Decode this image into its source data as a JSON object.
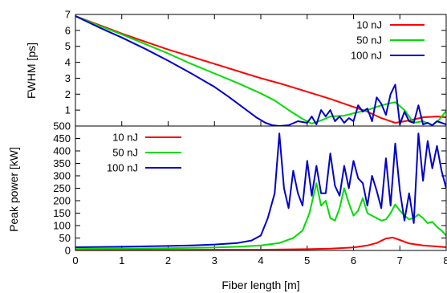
{
  "chart_data": [
    {
      "type": "line",
      "ylabel": "FWHM [ps]",
      "xlim": [
        0,
        8
      ],
      "ylim": [
        0,
        7
      ],
      "y_ticks": [
        "1",
        "2",
        "3",
        "4",
        "5",
        "6",
        "7"
      ],
      "legend_position": "top-right",
      "series": [
        {
          "name": "10 nJ",
          "color": "#ff0000",
          "x": [
            0,
            0.5,
            1,
            1.5,
            2,
            2.5,
            3,
            3.5,
            4,
            4.5,
            5,
            5.5,
            6,
            6.3,
            6.6,
            6.9,
            7.2,
            7.5,
            7.8,
            8
          ],
          "y": [
            6.9,
            6.35,
            5.8,
            5.3,
            4.8,
            4.35,
            3.9,
            3.45,
            3.0,
            2.6,
            2.15,
            1.7,
            1.2,
            0.9,
            0.5,
            0.2,
            0.35,
            0.55,
            0.6,
            0.55
          ]
        },
        {
          "name": "50 nJ",
          "color": "#00dd00",
          "x": [
            0,
            0.5,
            1,
            1.5,
            2,
            2.5,
            3,
            3.5,
            4,
            4.3,
            4.6,
            4.9,
            5.1,
            5.3,
            5.5,
            5.8,
            6.0,
            6.3,
            6.6,
            6.9,
            7.1,
            7.3,
            7.5,
            7.7,
            7.85,
            8
          ],
          "y": [
            6.9,
            6.3,
            5.75,
            5.15,
            4.55,
            3.9,
            3.3,
            2.7,
            2.05,
            1.6,
            1.0,
            0.45,
            0.15,
            0.35,
            0.6,
            0.65,
            0.8,
            1.0,
            1.3,
            1.5,
            1.0,
            0.2,
            0.3,
            0.05,
            0.4,
            0.95
          ]
        },
        {
          "name": "100 nJ",
          "color": "#0000cc",
          "x": [
            0,
            0.5,
            1,
            1.5,
            2,
            2.5,
            3,
            3.3,
            3.6,
            3.9,
            4.1,
            4.25,
            4.4,
            4.6,
            4.8,
            5.0,
            5.1,
            5.2,
            5.3,
            5.4,
            5.5,
            5.6,
            5.7,
            5.8,
            5.9,
            6.0,
            6.1,
            6.2,
            6.3,
            6.4,
            6.5,
            6.6,
            6.7,
            6.8,
            6.9,
            7.0,
            7.1,
            7.2,
            7.3,
            7.4,
            7.5,
            7.6,
            7.7,
            7.8,
            7.9,
            8.0
          ],
          "y": [
            6.9,
            6.2,
            5.55,
            4.85,
            4.1,
            3.3,
            2.45,
            1.85,
            1.2,
            0.55,
            0.2,
            0.05,
            0.0,
            0.05,
            0.3,
            0.2,
            0.6,
            0.1,
            1.0,
            0.6,
            1.0,
            0.3,
            0.6,
            0.2,
            0.5,
            0.3,
            1.3,
            0.9,
            1.1,
            0.3,
            1.8,
            1.4,
            0.7,
            2.0,
            2.6,
            0.1,
            0.9,
            0.3,
            0.2,
            1.3,
            0.1,
            0.2,
            0.05,
            0.3,
            0.2,
            0.1
          ]
        }
      ]
    },
    {
      "type": "line",
      "xlabel": "Fiber length [m]",
      "ylabel": "Peak power [kW]",
      "xlim": [
        0,
        8
      ],
      "ylim": [
        0,
        500
      ],
      "x_ticks": [
        "0",
        "1",
        "2",
        "3",
        "4",
        "5",
        "6",
        "7",
        "8"
      ],
      "y_ticks": [
        "0",
        "50",
        "100",
        "150",
        "200",
        "250",
        "300",
        "350",
        "400",
        "450",
        "500"
      ],
      "legend_position": "top-left",
      "series": [
        {
          "name": "10 nJ",
          "color": "#ff0000",
          "x": [
            0,
            1,
            2,
            3,
            4,
            5,
            5.5,
            6,
            6.3,
            6.5,
            6.7,
            6.85,
            7.0,
            7.2,
            7.5,
            7.8,
            8
          ],
          "y": [
            2,
            2,
            2,
            3,
            3,
            5,
            7,
            12,
            20,
            30,
            48,
            52,
            42,
            28,
            20,
            16,
            13
          ]
        },
        {
          "name": "50 nJ",
          "color": "#00dd00",
          "x": [
            0,
            1,
            2,
            3,
            3.5,
            4,
            4.4,
            4.7,
            4.9,
            5.05,
            5.2,
            5.3,
            5.4,
            5.5,
            5.6,
            5.7,
            5.8,
            5.9,
            6.0,
            6.1,
            6.2,
            6.3,
            6.4,
            6.5,
            6.6,
            6.7,
            6.8,
            6.9,
            7.0,
            7.1,
            7.2,
            7.3,
            7.4,
            7.5,
            7.6,
            7.7,
            7.8,
            7.9,
            8.0
          ],
          "y": [
            6,
            7,
            9,
            12,
            15,
            20,
            30,
            50,
            80,
            150,
            270,
            180,
            200,
            130,
            120,
            170,
            250,
            190,
            140,
            160,
            210,
            150,
            140,
            130,
            120,
            125,
            150,
            185,
            160,
            140,
            125,
            130,
            145,
            130,
            110,
            115,
            95,
            80,
            60
          ]
        },
        {
          "name": "100 nJ",
          "color": "#0000cc",
          "x": [
            0,
            1,
            2,
            2.5,
            3,
            3.5,
            3.8,
            4.0,
            4.15,
            4.3,
            4.4,
            4.5,
            4.6,
            4.7,
            4.8,
            4.9,
            5.0,
            5.1,
            5.2,
            5.3,
            5.4,
            5.5,
            5.6,
            5.7,
            5.8,
            5.9,
            6.0,
            6.1,
            6.2,
            6.3,
            6.4,
            6.5,
            6.6,
            6.7,
            6.8,
            6.9,
            7.0,
            7.1,
            7.2,
            7.3,
            7.4,
            7.5,
            7.6,
            7.7,
            7.8,
            7.9,
            8.0
          ],
          "y": [
            13,
            15,
            18,
            20,
            24,
            30,
            40,
            60,
            130,
            230,
            470,
            250,
            170,
            320,
            230,
            180,
            360,
            220,
            340,
            230,
            230,
            390,
            260,
            220,
            340,
            250,
            360,
            290,
            270,
            180,
            300,
            240,
            170,
            370,
            180,
            430,
            240,
            120,
            230,
            110,
            470,
            280,
            440,
            330,
            420,
            320,
            250
          ]
        }
      ]
    }
  ]
}
